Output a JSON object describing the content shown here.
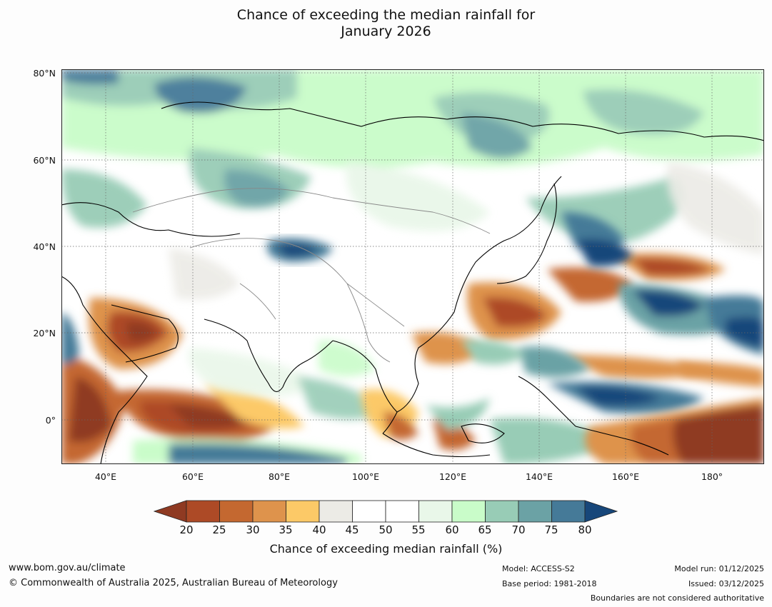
{
  "title": {
    "line1": "Chance of exceeding the median rainfall for",
    "line2": "January 2026"
  },
  "map": {
    "latitude_labels": [
      "80°N",
      "60°N",
      "40°N",
      "20°N",
      "0°"
    ],
    "longitude_labels": [
      "40°E",
      "60°E",
      "80°E",
      "100°E",
      "120°E",
      "140°E",
      "160°E",
      "180°"
    ],
    "extent": {
      "lon_min": 30,
      "lon_max": 191,
      "lat_min": -10,
      "lat_max": 80
    }
  },
  "colorbar": {
    "ticks": [
      "20",
      "25",
      "30",
      "35",
      "40",
      "45",
      "50",
      "55",
      "60",
      "65",
      "70",
      "75",
      "80"
    ],
    "colors": [
      "#ad4a26",
      "#c46830",
      "#de934c",
      "#fcc967",
      "#ecebe6",
      "#ffffff",
      "#ffffff",
      "#e9f7e9",
      "#c9fcc9",
      "#98ccb6",
      "#6ba2a5",
      "#457a98"
    ],
    "under_color": "#8f3a22",
    "over_color": "#17477a",
    "label": "Chance of exceeding median rainfall (%)"
  },
  "footer": {
    "website": "www.bom.gov.au/climate",
    "copyright": "© Commonwealth of Australia 2025, Australian Bureau of Meteorology",
    "model": "Model: ACCESS-S2",
    "base_period": "Base period: 1981-2018",
    "model_run": "Model run: 01/12/2025",
    "issued": "Issued: 03/12/2025",
    "disclaimer": "Boundaries are not considered authoritative"
  }
}
